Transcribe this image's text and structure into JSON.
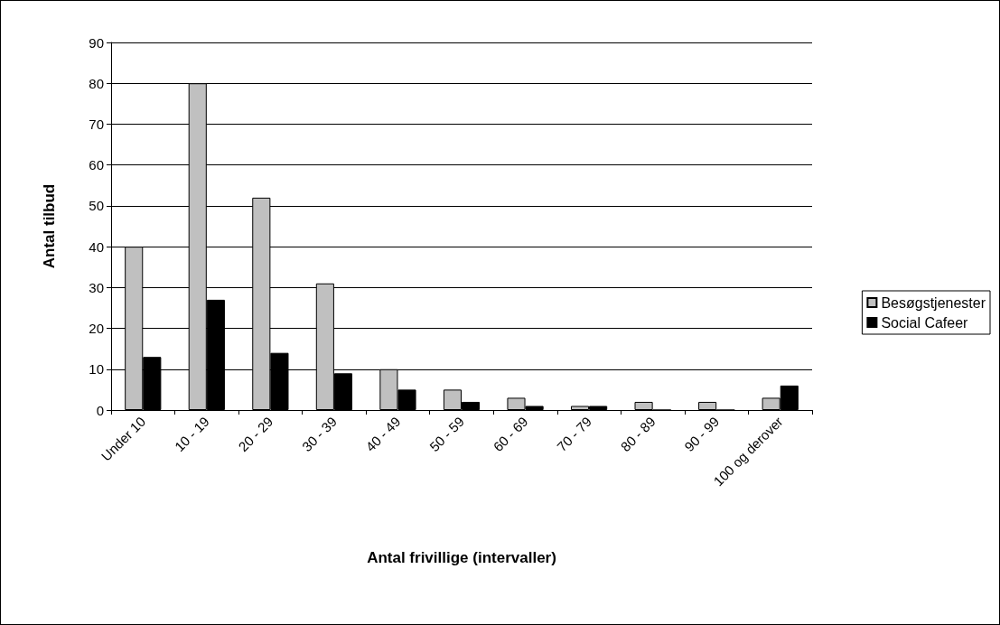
{
  "chart_data": {
    "type": "bar",
    "xlabel": "Antal frivillige (intervaller)",
    "ylabel": "Antal tilbud",
    "categories": [
      "Under 10",
      "10 - 19",
      "20 - 29",
      "30 - 39",
      "40 - 49",
      "50 - 59",
      "60 - 69",
      "70 - 79",
      "80 - 89",
      "90 - 99",
      "100 og derover"
    ],
    "series": [
      {
        "name": "Besøgstjenester",
        "color": "#c0c0c0",
        "values": [
          40,
          80,
          52,
          31,
          10,
          5,
          3,
          1,
          2,
          2,
          3
        ]
      },
      {
        "name": "Social Cafeer",
        "color": "#000000",
        "values": [
          13,
          27,
          14,
          9,
          5,
          2,
          1,
          1,
          0,
          0,
          6
        ]
      }
    ],
    "ylim": [
      0,
      90
    ],
    "yticks": [
      0,
      10,
      20,
      30,
      40,
      50,
      60,
      70,
      80,
      90
    ],
    "grid": "y",
    "legend": "right"
  }
}
